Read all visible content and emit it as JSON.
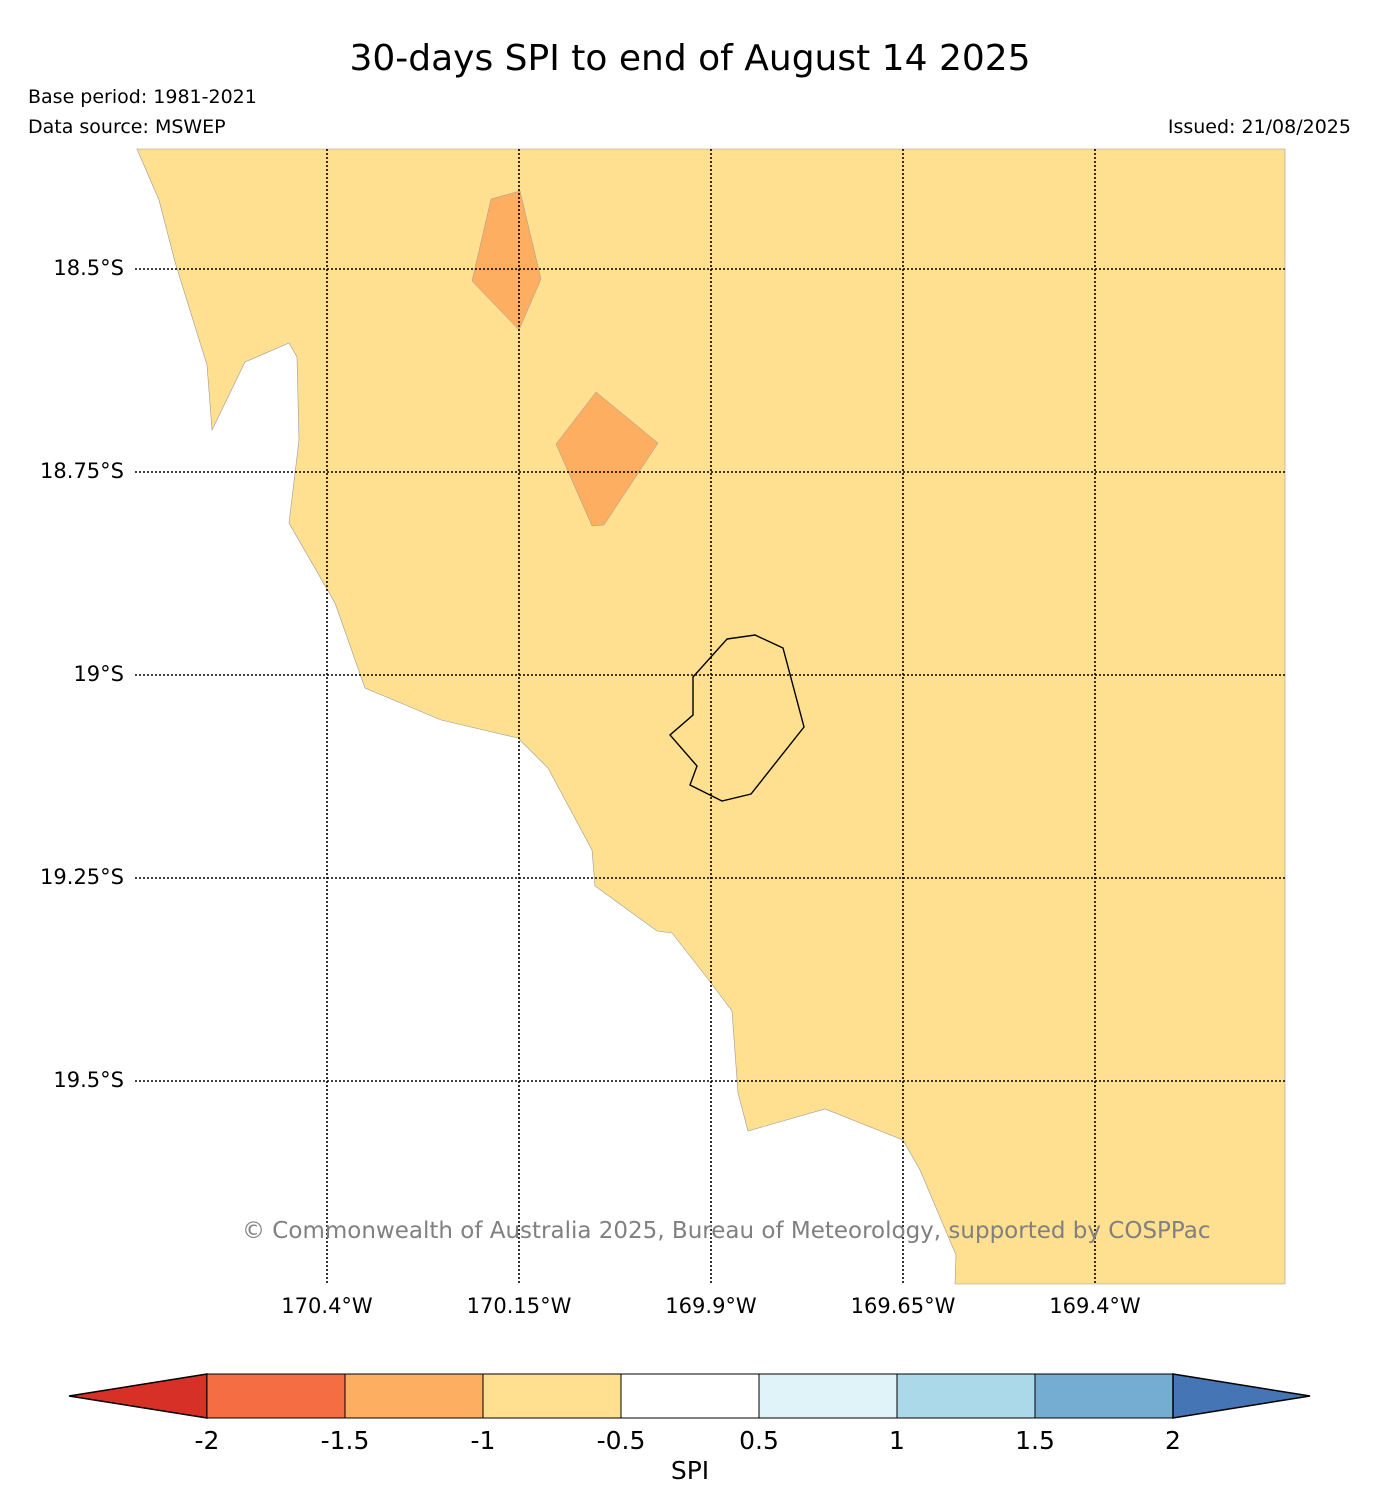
{
  "title": "30-days SPI to end of August 14 2025",
  "base_period": "Base period: 1981-2021",
  "data_source": "Data source: MSWEP",
  "issued": "Issued: 21/08/2025",
  "copyright": "© Commonwealth of Australia 2025, Bureau of Meteorology, supported by COSPPac",
  "latitude_labels": [
    "18.5°S",
    "18.75°S",
    "19°S",
    "19.25°S",
    "19.5°S"
  ],
  "longitude_labels": [
    "170.4°W",
    "170.15°W",
    "169.9°W",
    "169.65°W",
    "169.4°W"
  ],
  "colorbar": {
    "title": "SPI",
    "tick_labels": [
      "-2",
      "-1.5",
      "-1",
      "-0.5",
      "0.5",
      "1",
      "1.5",
      "2"
    ],
    "colors": [
      "#d73027",
      "#f46d43",
      "#fdae61",
      "#fee090",
      "#ffffff",
      "#e0f3f8",
      "#abd9e9",
      "#74add1",
      "#4575b4"
    ]
  },
  "map_colors": {
    "dry_fill": "#fee090",
    "very_dry_fill": "#fdae61"
  }
}
